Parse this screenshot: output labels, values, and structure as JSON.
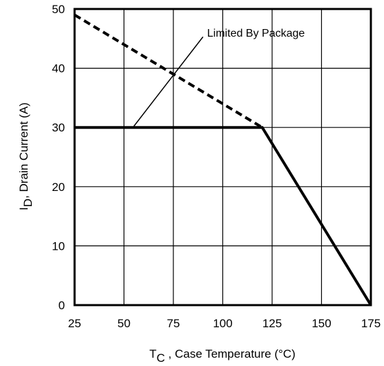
{
  "chart_data": {
    "type": "line",
    "title": "",
    "xlabel": {
      "main": "T",
      "sub": "C",
      "rest": " , Case Temperature (°C)"
    },
    "ylabel": {
      "main": "I",
      "sub": "D",
      "rest": ",  Drain Current (A)"
    },
    "xlim": [
      25,
      175
    ],
    "ylim": [
      0,
      50
    ],
    "xticks": [
      25,
      50,
      75,
      100,
      125,
      150,
      175
    ],
    "yticks": [
      0,
      10,
      20,
      30,
      40,
      50
    ],
    "grid": true,
    "series": [
      {
        "style": "dashed",
        "x": [
          25,
          120
        ],
        "y": [
          49,
          30
        ]
      },
      {
        "style": "solid",
        "x": [
          25,
          120,
          175
        ],
        "y": [
          30,
          30,
          0
        ]
      }
    ],
    "annotations": [
      {
        "text": "Limited By Package",
        "x": 90,
        "y": 46,
        "arrow_to": [
          55,
          30.2
        ]
      }
    ]
  }
}
